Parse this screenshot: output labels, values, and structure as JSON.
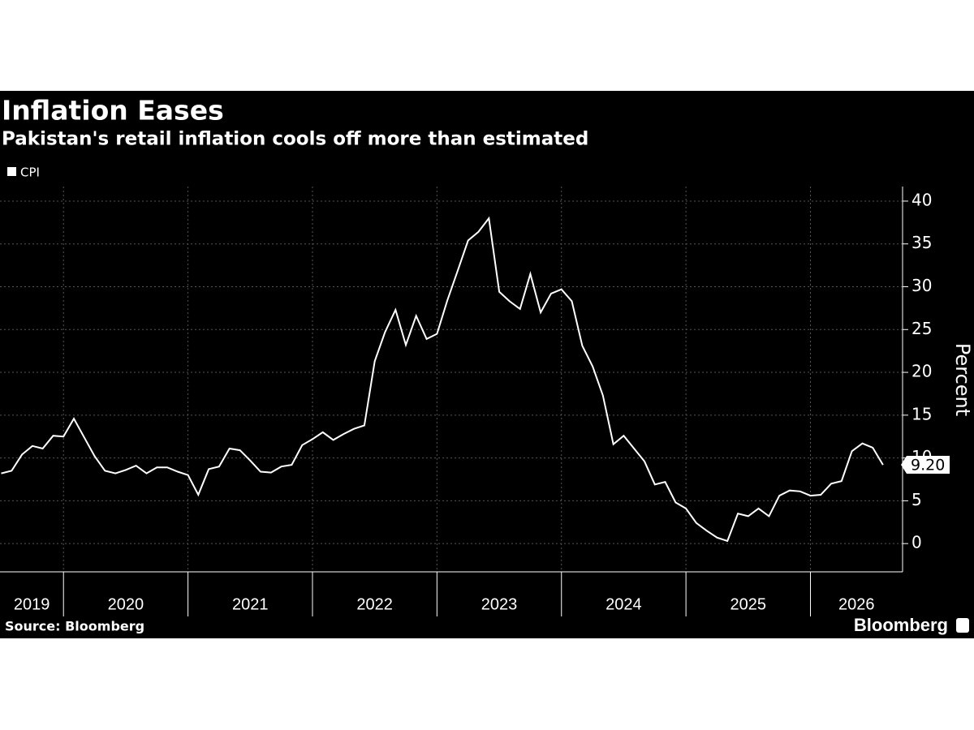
{
  "chart_data": {
    "type": "line",
    "title": "Inflation Eases",
    "subtitle": "Pakistan's retail inflation cools off more than estimated",
    "y_label": "Percent",
    "source": "Source: Bloomberg",
    "brand": "Bloomberg",
    "x": [
      2019.5,
      2019.583,
      2019.667,
      2019.75,
      2019.833,
      2019.917,
      2020,
      2020.083,
      2020.167,
      2020.25,
      2020.333,
      2020.417,
      2020.5,
      2020.583,
      2020.667,
      2020.75,
      2020.833,
      2020.917,
      2021,
      2021.083,
      2021.167,
      2021.25,
      2021.333,
      2021.417,
      2021.5,
      2021.583,
      2021.667,
      2021.75,
      2021.833,
      2021.917,
      2022,
      2022.083,
      2022.167,
      2022.25,
      2022.333,
      2022.417,
      2022.5,
      2022.583,
      2022.667,
      2022.75,
      2022.833,
      2022.917,
      2023,
      2023.083,
      2023.167,
      2023.25,
      2023.333,
      2023.417,
      2023.5,
      2023.583,
      2023.667,
      2023.75,
      2023.833,
      2023.917,
      2024,
      2024.083,
      2024.167,
      2024.25,
      2024.333,
      2024.417,
      2024.5,
      2024.583,
      2024.667,
      2024.75,
      2024.833,
      2024.917,
      2025,
      2025.083,
      2025.167,
      2025.25,
      2025.333,
      2025.417,
      2025.5,
      2025.583,
      2025.667,
      2025.75,
      2025.833,
      2025.917,
      2026,
      2026.083,
      2026.167,
      2026.25,
      2026.333,
      2026.417,
      2026.5,
      2026.583
    ],
    "series": [
      {
        "name": "CPI",
        "color": "#ffffff",
        "values": [
          8.2,
          8.5,
          10.4,
          11.4,
          11.1,
          12.6,
          12.5,
          14.6,
          12.4,
          10.2,
          8.5,
          8.2,
          8.6,
          9.1,
          8.2,
          8.9,
          8.9,
          8.4,
          8.0,
          5.7,
          8.7,
          9.0,
          11.1,
          10.9,
          9.7,
          8.4,
          8.3,
          9.0,
          9.2,
          11.5,
          12.2,
          13.0,
          12.1,
          12.8,
          13.4,
          13.8,
          21.3,
          24.7,
          27.3,
          23.2,
          26.6,
          23.9,
          24.5,
          28.4,
          31.9,
          35.4,
          36.4,
          38.0,
          29.4,
          28.3,
          27.4,
          31.5,
          27.0,
          29.2,
          29.7,
          28.3,
          23.1,
          20.7,
          17.3,
          11.6,
          12.6,
          11.1,
          9.6,
          6.9,
          7.2,
          4.8,
          4.1,
          2.4,
          1.5,
          0.7,
          0.3,
          3.5,
          3.2,
          4.1,
          3.2,
          5.6,
          6.2,
          6.1,
          5.6,
          5.7,
          7.0,
          7.3,
          10.8,
          11.7,
          11.2,
          9.2
        ],
        "value_labels": [
          null,
          null,
          null,
          null,
          null,
          null,
          null,
          null,
          null,
          null,
          null,
          null,
          null,
          null,
          null,
          null,
          null,
          null,
          null,
          null,
          null,
          null,
          null,
          null,
          null,
          null,
          null,
          null,
          null,
          null,
          null,
          null,
          null,
          null,
          null,
          null,
          null,
          null,
          null,
          null,
          null,
          null,
          null,
          null,
          null,
          null,
          null,
          null,
          null,
          null,
          null,
          null,
          null,
          null,
          null,
          null,
          null,
          null,
          null,
          null,
          null,
          null,
          null,
          null,
          null,
          null,
          null,
          null,
          null,
          null,
          null,
          null,
          null,
          null,
          null,
          null,
          null,
          null,
          null,
          null,
          null,
          null,
          null,
          null,
          null,
          "9.20"
        ]
      }
    ],
    "xlim": [
      2019.49,
      2026.74
    ],
    "xticks": [
      {
        "value": 2019,
        "label": "2019"
      },
      {
        "value": 2020,
        "label": "2020"
      },
      {
        "value": 2021,
        "label": "2021"
      },
      {
        "value": 2022,
        "label": "2022"
      },
      {
        "value": 2023,
        "label": "2023"
      },
      {
        "value": 2024,
        "label": "2024"
      },
      {
        "value": 2025,
        "label": "2025"
      },
      {
        "value": 2026,
        "label": "2026"
      }
    ],
    "ylim": [
      -3.3,
      41.7
    ],
    "yticks": [
      0,
      5,
      10,
      15,
      20,
      25,
      30,
      35,
      40
    ],
    "grid": true,
    "y_axis_side": "right"
  }
}
